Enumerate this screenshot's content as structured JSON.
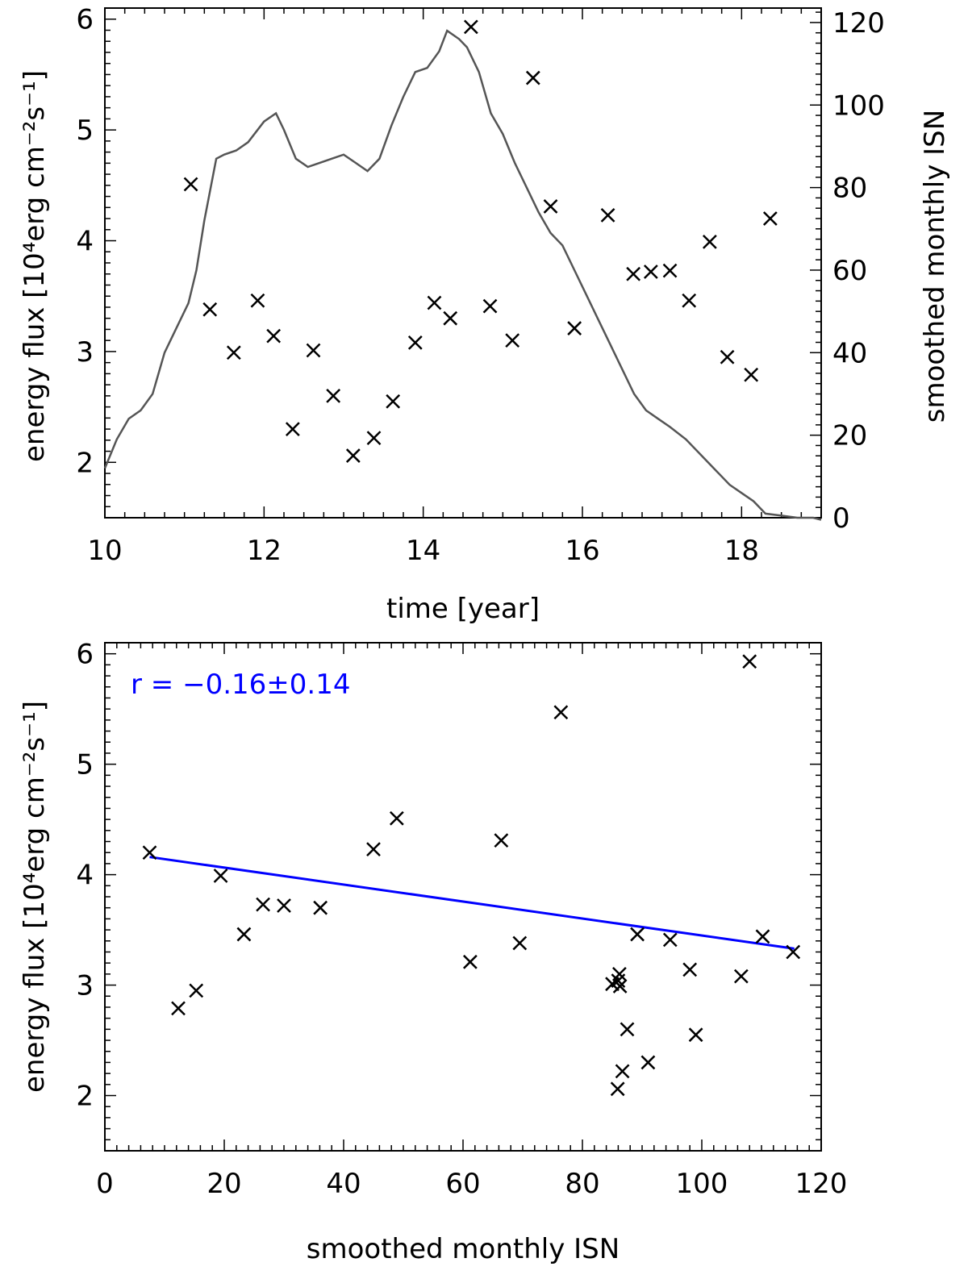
{
  "chart_data": [
    {
      "type": "scatter",
      "xlabel": "time [year]",
      "ylabel": "energy flux [10⁴erg cm⁻²s⁻¹]",
      "y2label": "smoothed monthly ISN",
      "xlim": [
        10,
        19
      ],
      "ylim": [
        1.5,
        6.1
      ],
      "y2lim": [
        0,
        123.5
      ],
      "x_ticks": [
        "10",
        "12",
        "14",
        "16",
        "18"
      ],
      "y_ticks": [
        "2",
        "3",
        "4",
        "5",
        "6"
      ],
      "y2_ticks": [
        "0",
        "20",
        "40",
        "60",
        "80",
        "100",
        "120"
      ],
      "grid": false,
      "marker": "x",
      "series": [
        {
          "points": [
            [
              11.08,
              4.51
            ],
            [
              11.32,
              3.38
            ],
            [
              11.62,
              2.99
            ],
            [
              11.92,
              3.46
            ],
            [
              12.12,
              3.14
            ],
            [
              12.36,
              2.3
            ],
            [
              12.62,
              3.01
            ],
            [
              12.87,
              2.6
            ],
            [
              13.12,
              2.06
            ],
            [
              13.38,
              2.22
            ],
            [
              13.62,
              2.55
            ],
            [
              13.9,
              3.08
            ],
            [
              14.14,
              3.44
            ],
            [
              14.34,
              3.3
            ],
            [
              14.6,
              5.93
            ],
            [
              14.84,
              3.41
            ],
            [
              15.12,
              3.1
            ],
            [
              15.38,
              5.47
            ],
            [
              15.6,
              4.31
            ],
            [
              15.9,
              3.21
            ],
            [
              16.32,
              4.23
            ],
            [
              16.64,
              3.7
            ],
            [
              16.86,
              3.72
            ],
            [
              17.1,
              3.73
            ],
            [
              17.34,
              3.46
            ],
            [
              17.6,
              3.99
            ],
            [
              17.82,
              2.95
            ],
            [
              18.12,
              2.79
            ],
            [
              18.36,
              4.2
            ]
          ]
        },
        {
          "axis": "right",
          "color": "#555555",
          "points": [
            [
              10.0,
              12
            ],
            [
              10.15,
              19
            ],
            [
              10.3,
              24
            ],
            [
              10.45,
              26
            ],
            [
              10.6,
              30
            ],
            [
              10.75,
              40
            ],
            [
              10.9,
              46
            ],
            [
              11.05,
              52
            ],
            [
              11.15,
              60
            ],
            [
              11.25,
              72
            ],
            [
              11.4,
              87
            ],
            [
              11.5,
              88
            ],
            [
              11.65,
              89
            ],
            [
              11.8,
              91
            ],
            [
              12.0,
              96
            ],
            [
              12.15,
              98
            ],
            [
              12.25,
              94
            ],
            [
              12.4,
              87
            ],
            [
              12.55,
              85
            ],
            [
              12.7,
              86
            ],
            [
              12.85,
              87
            ],
            [
              13.0,
              88
            ],
            [
              13.15,
              86
            ],
            [
              13.3,
              84
            ],
            [
              13.45,
              87
            ],
            [
              13.6,
              95
            ],
            [
              13.75,
              102
            ],
            [
              13.9,
              108
            ],
            [
              14.05,
              109
            ],
            [
              14.2,
              113
            ],
            [
              14.3,
              118
            ],
            [
              14.45,
              116
            ],
            [
              14.55,
              114
            ],
            [
              14.7,
              108
            ],
            [
              14.85,
              98
            ],
            [
              15.0,
              93
            ],
            [
              15.15,
              86
            ],
            [
              15.3,
              80
            ],
            [
              15.45,
              74
            ],
            [
              15.6,
              69
            ],
            [
              15.75,
              66
            ],
            [
              15.9,
              60
            ],
            [
              16.05,
              54
            ],
            [
              16.2,
              48
            ],
            [
              16.35,
              42
            ],
            [
              16.5,
              36
            ],
            [
              16.65,
              30
            ],
            [
              16.8,
              26
            ],
            [
              16.95,
              24
            ],
            [
              17.1,
              22
            ],
            [
              17.3,
              19
            ],
            [
              17.5,
              15
            ],
            [
              17.7,
              11
            ],
            [
              17.85,
              8
            ],
            [
              18.0,
              6
            ],
            [
              18.15,
              4
            ],
            [
              18.3,
              1
            ],
            [
              18.5,
              0.5
            ],
            [
              18.7,
              0
            ],
            [
              18.9,
              0
            ],
            [
              19.0,
              -0.5
            ]
          ]
        }
      ]
    },
    {
      "type": "scatter",
      "xlabel": "smoothed monthly ISN",
      "ylabel": "energy flux [10⁴erg cm⁻²s⁻¹]",
      "xlim": [
        0,
        120
      ],
      "ylim": [
        1.5,
        6.1
      ],
      "x_ticks": [
        "0",
        "20",
        "40",
        "60",
        "80",
        "100",
        "120"
      ],
      "y_ticks": [
        "2",
        "3",
        "4",
        "5",
        "6"
      ],
      "grid": false,
      "annotation": "r = −0.16±0.14",
      "annotation_color": "#0000ff",
      "fit_line": {
        "color": "#0000ff",
        "x": [
          7.5,
          115.5
        ],
        "y": [
          4.16,
          3.33
        ]
      },
      "series": [
        {
          "points": [
            [
              7.5,
              4.2
            ],
            [
              12.3,
              2.79
            ],
            [
              15.3,
              2.95
            ],
            [
              19.4,
              3.99
            ],
            [
              23.3,
              3.46
            ],
            [
              26.5,
              3.73
            ],
            [
              30.0,
              3.72
            ],
            [
              36.1,
              3.7
            ],
            [
              45.0,
              4.23
            ],
            [
              48.9,
              4.51
            ],
            [
              61.2,
              3.21
            ],
            [
              66.4,
              4.31
            ],
            [
              69.5,
              3.38
            ],
            [
              76.4,
              5.47
            ],
            [
              85.0,
              3.01
            ],
            [
              86.0,
              3.04
            ],
            [
              86.2,
              3.1
            ],
            [
              86.3,
              2.99
            ],
            [
              85.9,
              2.06
            ],
            [
              86.7,
              2.22
            ],
            [
              87.5,
              2.6
            ],
            [
              89.2,
              3.46
            ],
            [
              91.0,
              2.3
            ],
            [
              94.7,
              3.41
            ],
            [
              98.0,
              3.14
            ],
            [
              99.0,
              2.55
            ],
            [
              106.6,
              3.08
            ],
            [
              108.0,
              5.93
            ],
            [
              110.2,
              3.44
            ],
            [
              115.3,
              3.3
            ]
          ]
        }
      ]
    }
  ]
}
